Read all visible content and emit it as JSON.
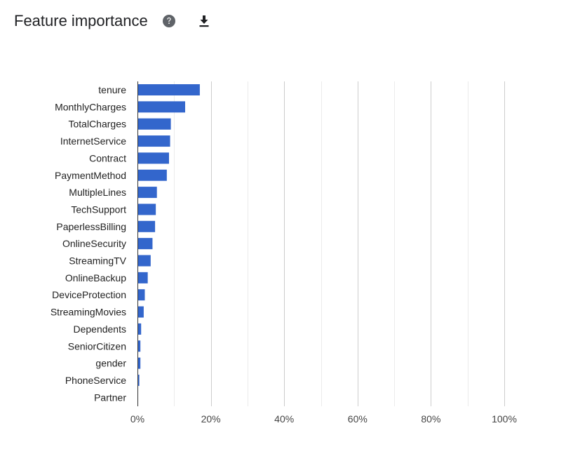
{
  "header": {
    "title": "Feature importance",
    "help_icon": "help-circle-icon",
    "download_icon": "download-icon"
  },
  "colors": {
    "bar": "#3366cc",
    "grid": "#cccccc",
    "axis": "#333333",
    "label": "#222222",
    "tick": "#444444"
  },
  "chart_data": {
    "type": "bar",
    "orientation": "horizontal",
    "title": "",
    "xlabel": "",
    "ylabel": "",
    "xlim": [
      0,
      100
    ],
    "x_unit": "%",
    "x_ticks": [
      0,
      20,
      40,
      60,
      80,
      100
    ],
    "x_tick_labels": [
      "0%",
      "20%",
      "40%",
      "60%",
      "80%",
      "100%"
    ],
    "grid": true,
    "categories": [
      "tenure",
      "MonthlyCharges",
      "TotalCharges",
      "InternetService",
      "Contract",
      "PaymentMethod",
      "MultipleLines",
      "TechSupport",
      "PaperlessBilling",
      "OnlineSecurity",
      "StreamingTV",
      "OnlineBackup",
      "DeviceProtection",
      "StreamingMovies",
      "Dependents",
      "SeniorCitizen",
      "gender",
      "PhoneService",
      "Partner"
    ],
    "values": [
      17.0,
      13.0,
      9.1,
      8.9,
      8.6,
      8.0,
      5.3,
      5.0,
      4.8,
      4.1,
      3.6,
      2.8,
      2.0,
      1.7,
      1.0,
      0.8,
      0.8,
      0.5,
      0.0
    ]
  }
}
